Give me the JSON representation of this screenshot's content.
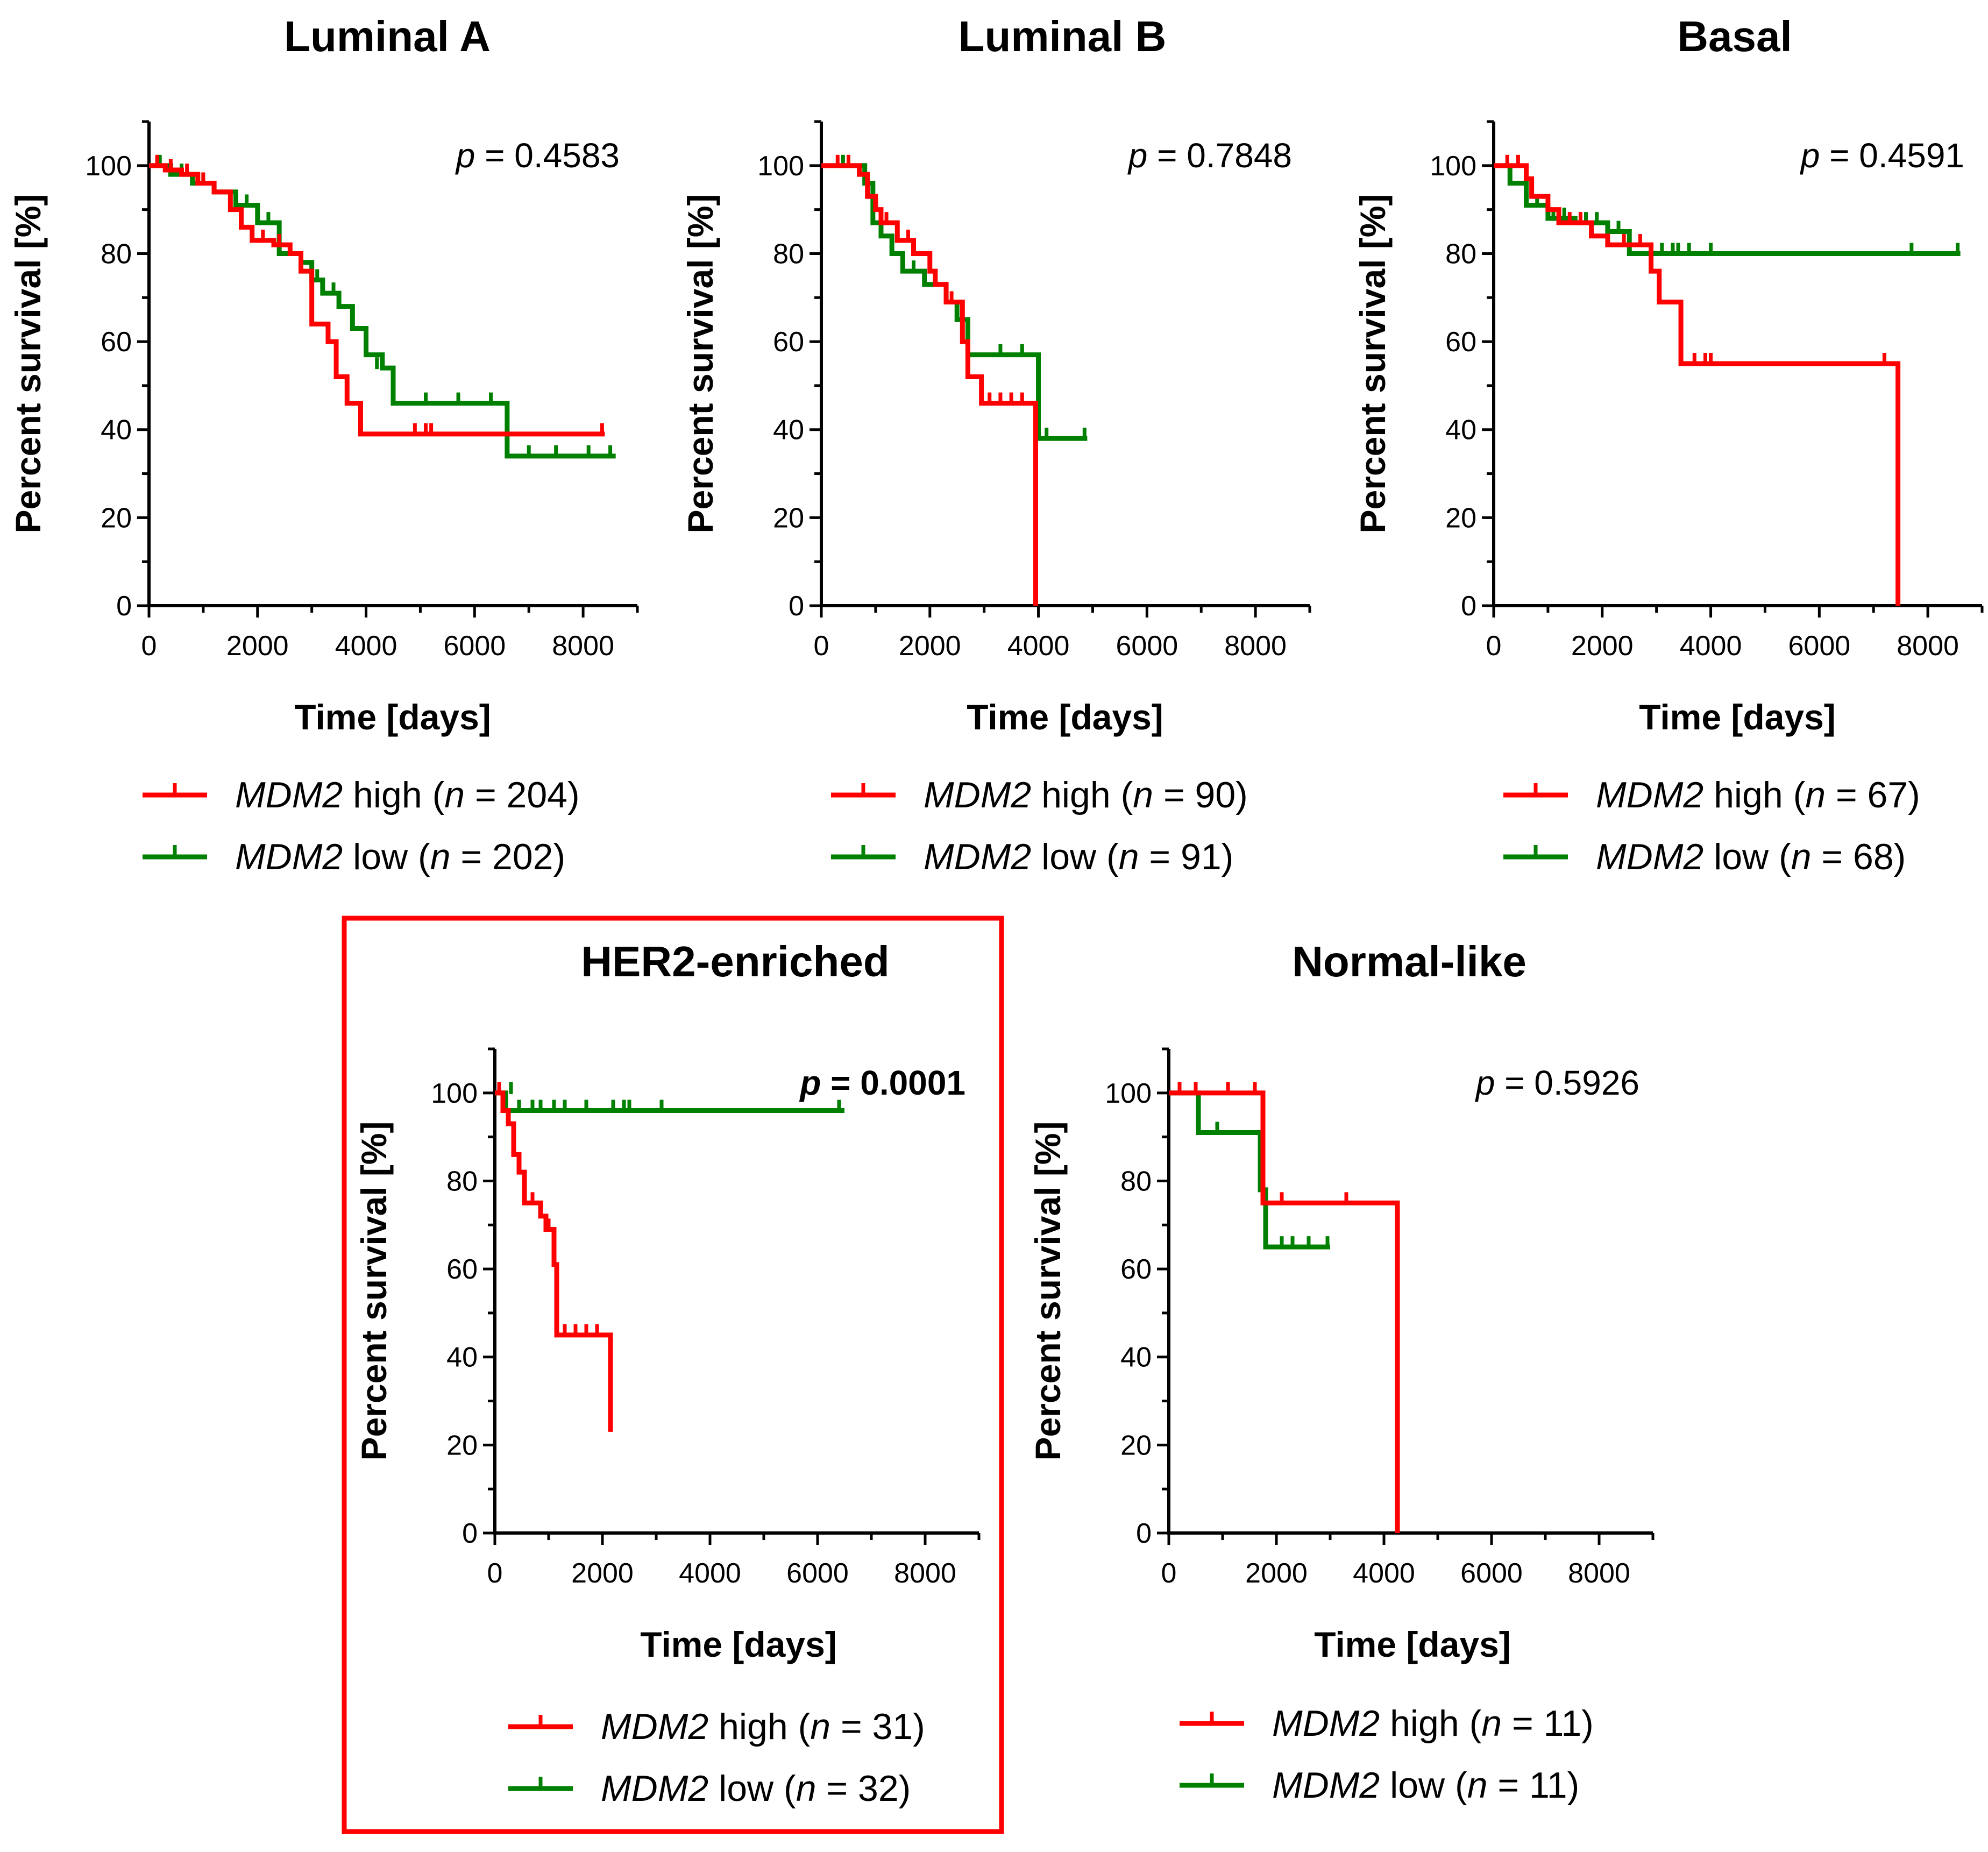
{
  "colors": {
    "high": "#ff0000",
    "low": "#008000",
    "highlight_box": "#ff0000"
  },
  "chart_data": [
    {
      "type": "line",
      "title": "Luminal A",
      "xlabel": "Time [days]",
      "ylabel": "Percent survival [%]",
      "xlim": [
        0,
        9000
      ],
      "ylim": [
        0,
        110
      ],
      "xticks": [
        "0",
        "2000",
        "4000",
        "6000",
        "8000"
      ],
      "yticks": [
        "0",
        "20",
        "40",
        "60",
        "80",
        "100"
      ],
      "p_prefix": "p",
      "p_value": "= 0.4583",
      "p_bold": false,
      "highlighted": false,
      "series": [
        {
          "key": "high",
          "gene": "MDM2",
          "group": "high",
          "n_label": "n",
          "n_value": "= 204",
          "steps": [
            [
              0,
              100
            ],
            [
              300,
              99
            ],
            [
              600,
              98
            ],
            [
              900,
              96
            ],
            [
              1200,
              94
            ],
            [
              1500,
              90
            ],
            [
              1700,
              86
            ],
            [
              1900,
              83
            ],
            [
              2300,
              82
            ],
            [
              2600,
              80
            ],
            [
              2800,
              76
            ],
            [
              3000,
              64
            ],
            [
              3300,
              60
            ],
            [
              3450,
              52
            ],
            [
              3650,
              46
            ],
            [
              3900,
              39
            ],
            [
              8400,
              39
            ]
          ],
          "censors": [
            [
              150,
              100
            ],
            [
              400,
              99
            ],
            [
              700,
              98
            ],
            [
              1000,
              96
            ],
            [
              2100,
              83
            ],
            [
              2400,
              82
            ],
            [
              4900,
              39
            ],
            [
              5100,
              39
            ],
            [
              5200,
              39
            ],
            [
              8350,
              39
            ]
          ]
        },
        {
          "key": "low",
          "gene": "MDM2",
          "group": "low",
          "n_label": "n",
          "n_value": "= 202",
          "steps": [
            [
              0,
              100
            ],
            [
              400,
              98
            ],
            [
              800,
              96
            ],
            [
              1200,
              94
            ],
            [
              1600,
              91
            ],
            [
              2000,
              87
            ],
            [
              2400,
              80
            ],
            [
              2800,
              78
            ],
            [
              3000,
              74
            ],
            [
              3200,
              71
            ],
            [
              3500,
              68
            ],
            [
              3750,
              63
            ],
            [
              4000,
              57
            ],
            [
              4300,
              54
            ],
            [
              4500,
              46
            ],
            [
              6600,
              46
            ],
            [
              6600,
              34
            ],
            [
              8600,
              34
            ]
          ],
          "censors": [
            [
              200,
              100
            ],
            [
              600,
              98
            ],
            [
              1000,
              96
            ],
            [
              1800,
              91
            ],
            [
              2200,
              87
            ],
            [
              2600,
              80
            ],
            [
              3100,
              74
            ],
            [
              3400,
              71
            ],
            [
              4200,
              54
            ],
            [
              5100,
              46
            ],
            [
              5700,
              46
            ],
            [
              6300,
              46
            ],
            [
              7000,
              34
            ],
            [
              7500,
              34
            ],
            [
              8100,
              34
            ],
            [
              8500,
              34
            ]
          ]
        }
      ]
    },
    {
      "type": "line",
      "title": "Luminal B",
      "xlabel": "Time [days]",
      "ylabel": "Percent survival [%]",
      "xlim": [
        0,
        9000
      ],
      "ylim": [
        0,
        110
      ],
      "xticks": [
        "0",
        "2000",
        "4000",
        "6000",
        "8000"
      ],
      "yticks": [
        "0",
        "20",
        "40",
        "60",
        "80",
        "100"
      ],
      "p_prefix": "p",
      "p_value": "= 0.7848",
      "p_bold": false,
      "highlighted": false,
      "series": [
        {
          "key": "high",
          "gene": "MDM2",
          "group": "high",
          "n_label": "n",
          "n_value": "= 90",
          "steps": [
            [
              0,
              100
            ],
            [
              700,
              98
            ],
            [
              850,
              93
            ],
            [
              1000,
              90
            ],
            [
              1100,
              87
            ],
            [
              1400,
              83
            ],
            [
              1700,
              80
            ],
            [
              2000,
              76
            ],
            [
              2100,
              73
            ],
            [
              2300,
              69
            ],
            [
              2600,
              60
            ],
            [
              2700,
              52
            ],
            [
              2950,
              46
            ],
            [
              3950,
              46
            ],
            [
              3950,
              0
            ]
          ],
          "censors": [
            [
              300,
              100
            ],
            [
              500,
              100
            ],
            [
              1200,
              87
            ],
            [
              1600,
              83
            ],
            [
              2400,
              69
            ],
            [
              3100,
              46
            ],
            [
              3300,
              46
            ],
            [
              3500,
              46
            ],
            [
              3700,
              46
            ]
          ]
        },
        {
          "key": "low",
          "gene": "MDM2",
          "group": "low",
          "n_label": "n",
          "n_value": "= 91",
          "steps": [
            [
              0,
              100
            ],
            [
              800,
              96
            ],
            [
              950,
              87
            ],
            [
              1100,
              84
            ],
            [
              1300,
              80
            ],
            [
              1500,
              76
            ],
            [
              1900,
              73
            ],
            [
              2300,
              69
            ],
            [
              2500,
              65
            ],
            [
              2700,
              57
            ],
            [
              4000,
              57
            ],
            [
              4000,
              38
            ],
            [
              4900,
              38
            ]
          ],
          "censors": [
            [
              400,
              100
            ],
            [
              1700,
              76
            ],
            [
              2100,
              73
            ],
            [
              3300,
              57
            ],
            [
              3700,
              57
            ],
            [
              4150,
              38
            ],
            [
              4850,
              38
            ]
          ]
        }
      ]
    },
    {
      "type": "line",
      "title": "Basal",
      "xlabel": "Time [days]",
      "ylabel": "Percent survival [%]",
      "xlim": [
        0,
        9000
      ],
      "ylim": [
        0,
        110
      ],
      "xticks": [
        "0",
        "2000",
        "4000",
        "6000",
        "8000"
      ],
      "yticks": [
        "0",
        "20",
        "40",
        "60",
        "80",
        "100"
      ],
      "p_prefix": "p",
      "p_value": "= 0.4591",
      "p_bold": false,
      "highlighted": false,
      "series": [
        {
          "key": "high",
          "gene": "MDM2",
          "group": "high",
          "n_label": "n",
          "n_value": "= 67",
          "steps": [
            [
              0,
              100
            ],
            [
              600,
              97
            ],
            [
              700,
              93
            ],
            [
              1000,
              90
            ],
            [
              1200,
              87
            ],
            [
              1800,
              84
            ],
            [
              2100,
              82
            ],
            [
              2850,
              82
            ],
            [
              2900,
              76
            ],
            [
              3050,
              69
            ],
            [
              3450,
              69
            ],
            [
              3450,
              55
            ],
            [
              7450,
              55
            ],
            [
              7450,
              0
            ]
          ],
          "censors": [
            [
              250,
              100
            ],
            [
              450,
              100
            ],
            [
              1400,
              87
            ],
            [
              1600,
              87
            ],
            [
              2400,
              82
            ],
            [
              2700,
              82
            ],
            [
              3700,
              55
            ],
            [
              3900,
              55
            ],
            [
              4000,
              55
            ],
            [
              7200,
              55
            ]
          ]
        },
        {
          "key": "low",
          "gene": "MDM2",
          "group": "low",
          "n_label": "n",
          "n_value": "= 68",
          "steps": [
            [
              0,
              100
            ],
            [
              300,
              96
            ],
            [
              600,
              91
            ],
            [
              1000,
              88
            ],
            [
              1500,
              87
            ],
            [
              2100,
              85
            ],
            [
              2500,
              83
            ],
            [
              2500,
              80
            ],
            [
              8600,
              80
            ]
          ],
          "censors": [
            [
              800,
              91
            ],
            [
              1100,
              88
            ],
            [
              1300,
              88
            ],
            [
              1700,
              87
            ],
            [
              1900,
              87
            ],
            [
              2300,
              85
            ],
            [
              3100,
              80
            ],
            [
              3300,
              80
            ],
            [
              3400,
              80
            ],
            [
              3600,
              80
            ],
            [
              4000,
              80
            ],
            [
              7700,
              80
            ],
            [
              8550,
              80
            ]
          ]
        }
      ]
    },
    {
      "type": "line",
      "title": "HER2-enriched",
      "xlabel": "Time [days]",
      "ylabel": "Percent survival [%]",
      "xlim": [
        0,
        9000
      ],
      "ylim": [
        0,
        110
      ],
      "xticks": [
        "0",
        "2000",
        "4000",
        "6000",
        "8000"
      ],
      "yticks": [
        "0",
        "20",
        "40",
        "60",
        "80",
        "100"
      ],
      "p_prefix": "p",
      "p_value": "= 0.0001",
      "p_bold": true,
      "highlighted": true,
      "series": [
        {
          "key": "high",
          "gene": "MDM2",
          "group": "high",
          "n_label": "n",
          "n_value": "= 31",
          "steps": [
            [
              0,
              100
            ],
            [
              150,
              96
            ],
            [
              250,
              93
            ],
            [
              350,
              86
            ],
            [
              450,
              82
            ],
            [
              550,
              75
            ],
            [
              850,
              72
            ],
            [
              950,
              69
            ],
            [
              1100,
              61
            ],
            [
              1150,
              45
            ],
            [
              2150,
              45
            ],
            [
              2150,
              23
            ]
          ],
          "censors": [
            [
              80,
              100
            ],
            [
              700,
              75
            ],
            [
              1000,
              69
            ],
            [
              1300,
              45
            ],
            [
              1500,
              45
            ],
            [
              1700,
              45
            ],
            [
              1900,
              45
            ]
          ]
        },
        {
          "key": "low",
          "gene": "MDM2",
          "group": "low",
          "n_label": "n",
          "n_value": "= 32",
          "steps": [
            [
              0,
              100
            ],
            [
              200,
              96
            ],
            [
              6500,
              96
            ]
          ],
          "censors": [
            [
              300,
              100
            ],
            [
              450,
              96
            ],
            [
              700,
              96
            ],
            [
              850,
              96
            ],
            [
              1100,
              96
            ],
            [
              1300,
              96
            ],
            [
              1700,
              96
            ],
            [
              2200,
              96
            ],
            [
              2400,
              96
            ],
            [
              2500,
              96
            ],
            [
              3100,
              96
            ],
            [
              6400,
              96
            ]
          ]
        }
      ]
    },
    {
      "type": "line",
      "title": "Normal-like",
      "xlabel": "Time [days]",
      "ylabel": "Percent survival [%]",
      "xlim": [
        0,
        9000
      ],
      "ylim": [
        0,
        110
      ],
      "xticks": [
        "0",
        "2000",
        "4000",
        "6000",
        "8000"
      ],
      "yticks": [
        "0",
        "20",
        "40",
        "60",
        "80",
        "100"
      ],
      "p_prefix": "p",
      "p_value": "= 0.5926",
      "p_bold": false,
      "highlighted": false,
      "series": [
        {
          "key": "high",
          "gene": "MDM2",
          "group": "high",
          "n_label": "n",
          "n_value": "= 11",
          "steps": [
            [
              0,
              100
            ],
            [
              1750,
              100
            ],
            [
              1750,
              75
            ],
            [
              4250,
              75
            ],
            [
              4250,
              0
            ]
          ],
          "censors": [
            [
              200,
              100
            ],
            [
              500,
              100
            ],
            [
              1100,
              100
            ],
            [
              1600,
              100
            ],
            [
              2100,
              75
            ],
            [
              3300,
              75
            ]
          ]
        },
        {
          "key": "low",
          "gene": "MDM2",
          "group": "low",
          "n_label": "n",
          "n_value": "= 11",
          "steps": [
            [
              0,
              100
            ],
            [
              550,
              91
            ],
            [
              1700,
              91
            ],
            [
              1700,
              78
            ],
            [
              1800,
              65
            ],
            [
              3000,
              65
            ]
          ],
          "censors": [
            [
              900,
              91
            ],
            [
              2100,
              65
            ],
            [
              2300,
              65
            ],
            [
              2600,
              65
            ],
            [
              2950,
              65
            ]
          ]
        }
      ]
    }
  ]
}
